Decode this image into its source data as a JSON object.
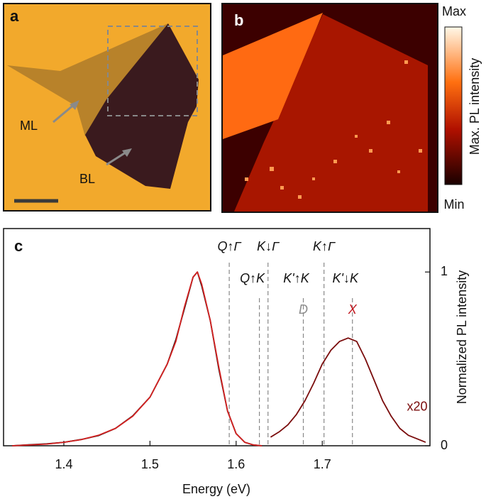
{
  "panel_a": {
    "letter": "a",
    "labels": [
      "ML",
      "BL"
    ]
  },
  "panel_b": {
    "letter": "b",
    "colorbar": {
      "max": "Max",
      "min": "Min",
      "label": "Max. PL intensity"
    }
  },
  "chart_data": {
    "type": "line",
    "letter": "c",
    "x_label": "Energy (eV)",
    "y2_label": "Normalized PL intensity",
    "xlim": [
      1.33,
      1.825
    ],
    "xticks": [
      1.4,
      1.5,
      1.6,
      1.7
    ],
    "y2lim": [
      0,
      1.25
    ],
    "y2ticks": [
      0,
      1
    ],
    "series": [
      {
        "color": "#111111",
        "axis": "y2",
        "x": [
          1.34,
          1.36,
          1.38,
          1.4,
          1.42,
          1.44,
          1.46,
          1.48,
          1.5,
          1.52,
          1.53,
          1.54,
          1.55,
          1.555,
          1.56,
          1.57,
          1.58,
          1.59,
          1.6,
          1.61,
          1.62,
          1.63
        ],
        "values": [
          0.0,
          0.006,
          0.011,
          0.02,
          0.036,
          0.058,
          0.1,
          0.172,
          0.28,
          0.47,
          0.61,
          0.79,
          0.97,
          1.0,
          0.92,
          0.72,
          0.44,
          0.2,
          0.07,
          0.02,
          0.005,
          0.0
        ]
      },
      {
        "color": "#d42020",
        "axis": "y2",
        "x": [
          1.34,
          1.36,
          1.38,
          1.4,
          1.42,
          1.44,
          1.46,
          1.48,
          1.5,
          1.52,
          1.53,
          1.54,
          1.55,
          1.555,
          1.56,
          1.57,
          1.58,
          1.59,
          1.6,
          1.61,
          1.62,
          1.63
        ],
        "values": [
          0.0,
          0.005,
          0.01,
          0.02,
          0.035,
          0.06,
          0.1,
          0.17,
          0.28,
          0.47,
          0.6,
          0.8,
          0.97,
          1.0,
          0.93,
          0.72,
          0.45,
          0.2,
          0.07,
          0.02,
          0.005,
          0.0
        ]
      },
      {
        "color": "#7a0c0c",
        "axis": "y2",
        "scale_label": "x20",
        "x": [
          1.64,
          1.65,
          1.66,
          1.67,
          1.68,
          1.69,
          1.7,
          1.71,
          1.72,
          1.73,
          1.74,
          1.75,
          1.76,
          1.77,
          1.78,
          1.79,
          1.8,
          1.81,
          1.82
        ],
        "values": [
          0.05,
          0.08,
          0.12,
          0.18,
          0.26,
          0.36,
          0.47,
          0.55,
          0.6,
          0.62,
          0.6,
          0.5,
          0.38,
          0.26,
          0.17,
          0.1,
          0.06,
          0.04,
          0.02
        ]
      }
    ],
    "markers": [
      {
        "x": 1.592,
        "label": "Q↑Γ"
      },
      {
        "x": 1.627,
        "label": "Q↑K"
      },
      {
        "x": 1.637,
        "label": "K↓Γ"
      },
      {
        "x": 1.678,
        "label": "K'↑K"
      },
      {
        "x": 1.702,
        "label": "K↑Γ"
      },
      {
        "x": 1.735,
        "label": "K'↓K"
      }
    ],
    "peak_labels": [
      {
        "x": 1.678,
        "label": "D",
        "color": "#8c8c8c"
      },
      {
        "x": 1.735,
        "label": "X",
        "color": "#c0141c"
      }
    ]
  }
}
